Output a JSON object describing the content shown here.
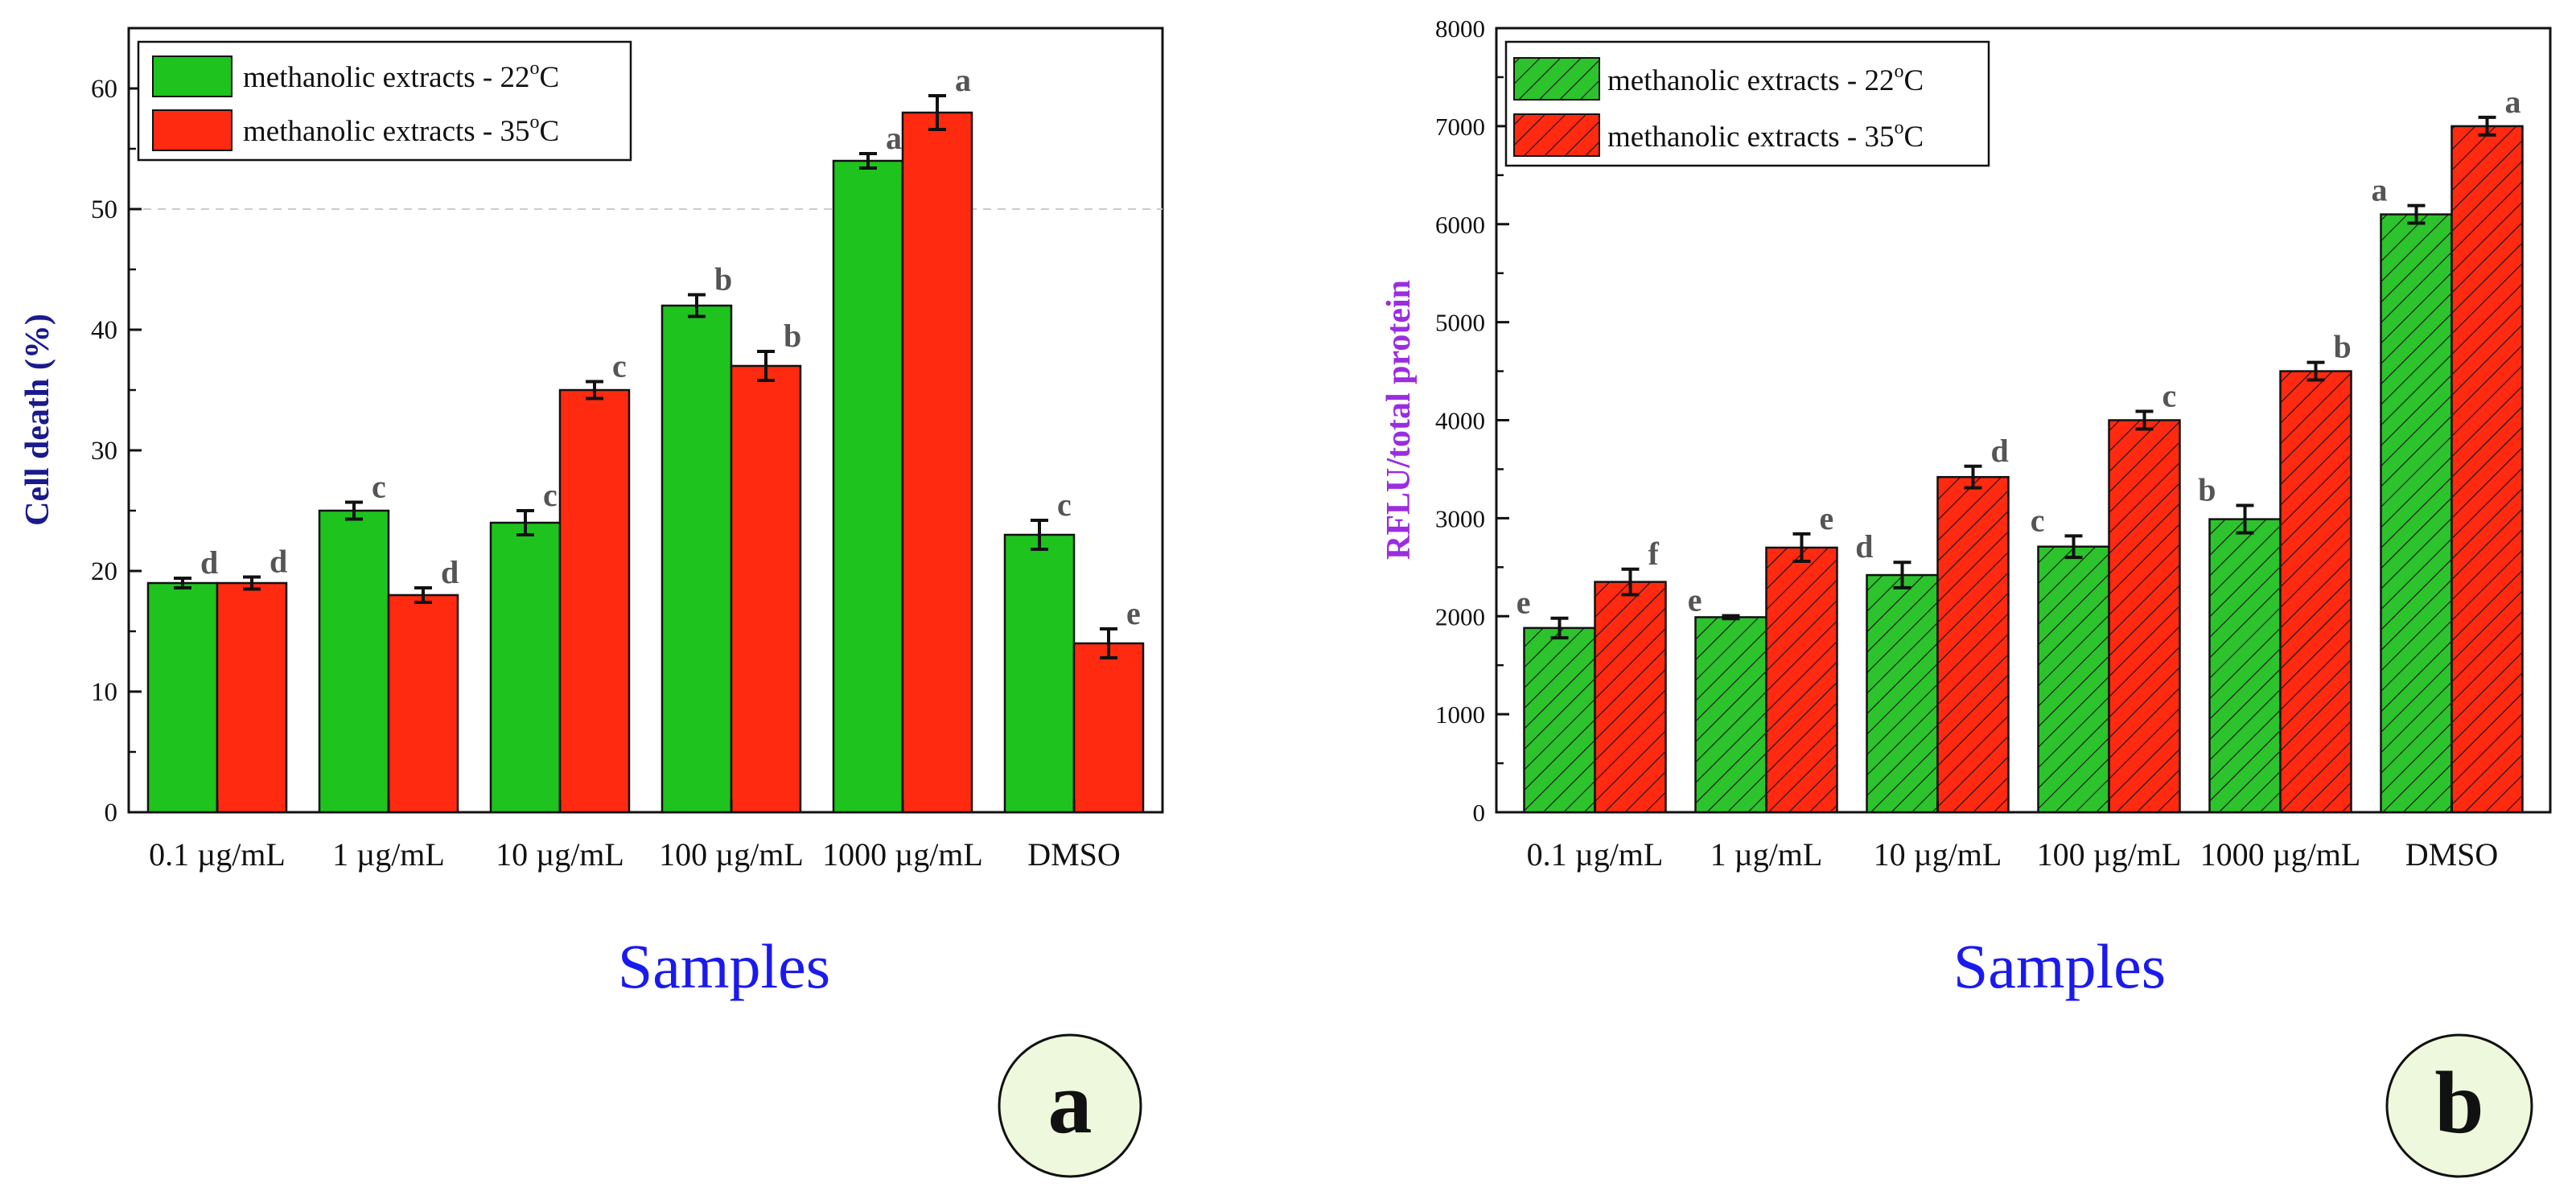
{
  "panels": [
    {
      "badge": "a",
      "xlabel": "Samples",
      "colors": {
        "series0": "#1ec31e",
        "series1": "#ff2a10",
        "ylabel": "#1a1a8c",
        "xlabel": "#1a1aee",
        "badge_fill": "#eef8dc",
        "letters": "#555555"
      }
    },
    {
      "badge": "b",
      "xlabel": "Samples",
      "colors": {
        "series0": "#2cc32c",
        "series1": "#ff2a10",
        "ylabel": "#9a2de0",
        "xlabel": "#1a1aee",
        "badge_fill": "#eef8dc",
        "letters": "#555555"
      }
    }
  ],
  "chart_data": [
    {
      "type": "bar",
      "title": "",
      "xlabel": "Samples",
      "ylabel": "Cell death (%)",
      "ylim": [
        0,
        65
      ],
      "yticks": [
        0,
        10,
        20,
        30,
        40,
        50,
        60
      ],
      "reference_line": 50,
      "categories": [
        "0.1 µg/mL",
        "1 µg/mL",
        "10 µg/mL",
        "100 µg/mL",
        "1000 µg/mL",
        "DMSO"
      ],
      "series": [
        {
          "name": "methanolic extracts - 22",
          "values": [
            19,
            25,
            24,
            42,
            54,
            23
          ],
          "errors": [
            0.4,
            0.7,
            1.0,
            0.9,
            0.6,
            1.2
          ],
          "letters": [
            "d",
            "c",
            "c",
            "b",
            "a",
            "c"
          ]
        },
        {
          "name": "methanolic extracts - 35",
          "values": [
            19,
            18,
            35,
            37,
            58,
            14
          ],
          "errors": [
            0.5,
            0.6,
            0.7,
            1.2,
            1.4,
            1.2
          ],
          "letters": [
            "d",
            "d",
            "c",
            "b",
            "a",
            "e"
          ]
        }
      ],
      "legend_unit_sup": "o",
      "legend_unit": "C",
      "legend": "top-left",
      "hatched": false
    },
    {
      "type": "bar",
      "title": "",
      "xlabel": "Samples",
      "ylabel": "RFLU/total protein",
      "ylim": [
        0,
        8000
      ],
      "yticks": [
        0,
        1000,
        2000,
        3000,
        4000,
        5000,
        6000,
        7000,
        8000
      ],
      "categories": [
        "0.1 µg/mL",
        "1 µg/mL",
        "10 µg/mL",
        "100 µg/mL",
        "1000 µg/mL",
        "DMSO"
      ],
      "series": [
        {
          "name": "methanolic extracts - 22",
          "values": [
            1880,
            1990,
            2420,
            2710,
            2990,
            6100
          ],
          "errors": [
            100,
            15,
            130,
            110,
            140,
            90
          ],
          "letters": [
            "e",
            "e",
            "d",
            "c",
            "b",
            "a"
          ]
        },
        {
          "name": "methanolic extracts - 35",
          "values": [
            2350,
            2700,
            3420,
            4000,
            4500,
            7000
          ],
          "errors": [
            130,
            140,
            110,
            90,
            90,
            90
          ],
          "letters": [
            "f",
            "e",
            "d",
            "c",
            "b",
            "a"
          ]
        }
      ],
      "legend_unit_sup": "o",
      "legend_unit": "C",
      "legend": "top-left",
      "hatched": true
    }
  ]
}
